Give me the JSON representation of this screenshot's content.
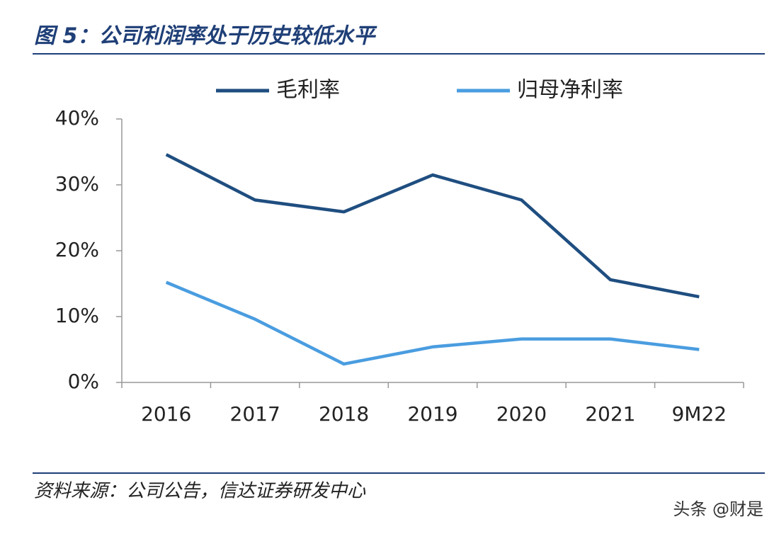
{
  "chart_data": {
    "type": "line",
    "title": "图 5：公司利润率处于历史较低水平",
    "source": "资料来源：公司公告，信达证券研发中心",
    "categories": [
      "2016",
      "2017",
      "2018",
      "2019",
      "2020",
      "2021",
      "9M22"
    ],
    "series": [
      {
        "name": "毛利率",
        "color": "#1f4e80",
        "values": [
          34.6,
          27.7,
          25.9,
          31.5,
          27.7,
          15.6,
          13.0
        ]
      },
      {
        "name": "归母净利率",
        "color": "#4a9de0",
        "values": [
          15.2,
          9.6,
          2.8,
          5.4,
          6.6,
          6.6,
          5.0
        ]
      }
    ],
    "ylim": [
      0,
      40
    ],
    "yticks": [
      {
        "value": 0,
        "label": "0%"
      },
      {
        "value": 10,
        "label": "10%"
      },
      {
        "value": 20,
        "label": "20%"
      },
      {
        "value": 30,
        "label": "30%"
      },
      {
        "value": 40,
        "label": "40%"
      }
    ],
    "legend": "top",
    "grid": false
  },
  "watermark": "头条 @财是"
}
